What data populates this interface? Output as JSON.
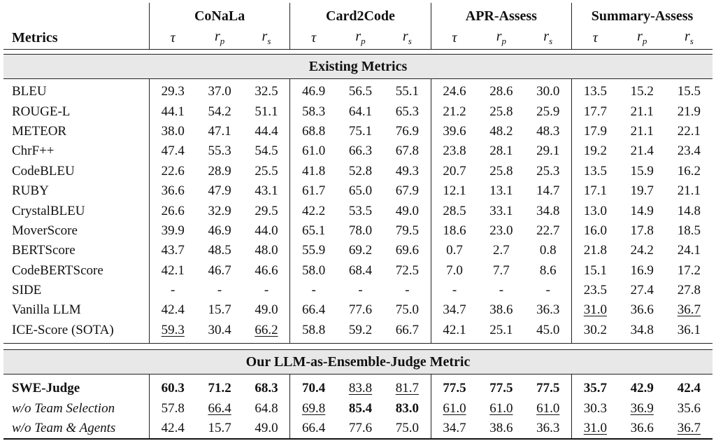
{
  "header": {
    "metrics_label": "Metrics",
    "datasets": [
      "CoNaLa",
      "Card2Code",
      "APR-Assess",
      "Summary-Assess"
    ],
    "subcols": [
      {
        "sym": "τ",
        "sub": ""
      },
      {
        "sym": "r",
        "sub": "p"
      },
      {
        "sym": "r",
        "sub": "s"
      }
    ]
  },
  "sections": {
    "existing": "Existing Metrics",
    "ours": "Our LLM-as-Ensemble-Judge Metric"
  },
  "existing_rows": [
    {
      "name": "BLEU",
      "cells": [
        "29.3",
        "37.0",
        "32.5",
        "46.9",
        "56.5",
        "55.1",
        "24.6",
        "28.6",
        "30.0",
        "13.5",
        "15.2",
        "15.5"
      ]
    },
    {
      "name": "ROUGE-L",
      "cells": [
        "44.1",
        "54.2",
        "51.1",
        "58.3",
        "64.1",
        "65.3",
        "21.2",
        "25.8",
        "25.9",
        "17.7",
        "21.1",
        "21.9"
      ]
    },
    {
      "name": "METEOR",
      "cells": [
        "38.0",
        "47.1",
        "44.4",
        "68.8",
        "75.1",
        "76.9",
        "39.6",
        "48.2",
        "48.3",
        "17.9",
        "21.1",
        "22.1"
      ]
    },
    {
      "name": "ChrF++",
      "cells": [
        "47.4",
        "55.3",
        "54.5",
        "61.0",
        "66.3",
        "67.8",
        "23.8",
        "28.1",
        "29.1",
        "19.2",
        "21.4",
        "23.4"
      ]
    },
    {
      "name": "CodeBLEU",
      "cells": [
        "22.6",
        "28.9",
        "25.5",
        "41.8",
        "52.8",
        "49.3",
        "20.7",
        "25.8",
        "25.3",
        "13.5",
        "15.9",
        "16.2"
      ]
    },
    {
      "name": "RUBY",
      "cells": [
        "36.6",
        "47.9",
        "43.1",
        "61.7",
        "65.0",
        "67.9",
        "12.1",
        "13.1",
        "14.7",
        "17.1",
        "19.7",
        "21.1"
      ]
    },
    {
      "name": "CrystalBLEU",
      "cells": [
        "26.6",
        "32.9",
        "29.5",
        "42.2",
        "53.5",
        "49.0",
        "28.5",
        "33.1",
        "34.8",
        "13.0",
        "14.9",
        "14.8"
      ]
    },
    {
      "name": "MoverScore",
      "cells": [
        "39.9",
        "46.9",
        "44.0",
        "65.1",
        "78.0",
        "79.5",
        "18.6",
        "23.0",
        "22.7",
        "16.0",
        "17.8",
        "18.5"
      ]
    },
    {
      "name": "BERTScore",
      "cells": [
        "43.7",
        "48.5",
        "48.0",
        "55.9",
        "69.2",
        "69.6",
        "0.7",
        "2.7",
        "0.8",
        "21.8",
        "24.2",
        "24.1"
      ]
    },
    {
      "name": "CodeBERTScore",
      "cells": [
        "42.1",
        "46.7",
        "46.6",
        "58.0",
        "68.4",
        "72.5",
        "7.0",
        "7.7",
        "8.6",
        "15.1",
        "16.9",
        "17.2"
      ]
    },
    {
      "name": "SIDE",
      "cells": [
        "-",
        "-",
        "-",
        "-",
        "-",
        "-",
        "-",
        "-",
        "-",
        "23.5",
        "27.4",
        "27.8"
      ]
    },
    {
      "name": "Vanilla LLM",
      "cells": [
        "42.4",
        "15.7",
        "49.0",
        "66.4",
        "77.6",
        "75.0",
        "34.7",
        "38.6",
        "36.3",
        "31.0",
        "36.6",
        "36.7"
      ]
    },
    {
      "name": "ICE-Score (SOTA)",
      "cells": [
        "59.3",
        "30.4",
        "66.2",
        "58.8",
        "59.2",
        "66.7",
        "42.1",
        "25.1",
        "45.0",
        "30.2",
        "34.8",
        "36.1"
      ]
    }
  ],
  "ours_rows": [
    {
      "name": "SWE-Judge",
      "cells": [
        "60.3",
        "71.2",
        "68.3",
        "70.4",
        "83.8",
        "81.7",
        "77.5",
        "77.5",
        "77.5",
        "35.7",
        "42.9",
        "42.4"
      ]
    },
    {
      "name": "w/o Team Selection",
      "cells": [
        "57.8",
        "66.4",
        "64.8",
        "69.8",
        "85.4",
        "83.0",
        "61.0",
        "61.0",
        "61.0",
        "30.3",
        "36.9",
        "35.6"
      ]
    },
    {
      "name": "w/o Team & Agents",
      "cells": [
        "42.4",
        "15.7",
        "49.0",
        "66.4",
        "77.6",
        "75.0",
        "34.7",
        "38.6",
        "36.3",
        "31.0",
        "36.6",
        "36.7"
      ]
    }
  ]
}
